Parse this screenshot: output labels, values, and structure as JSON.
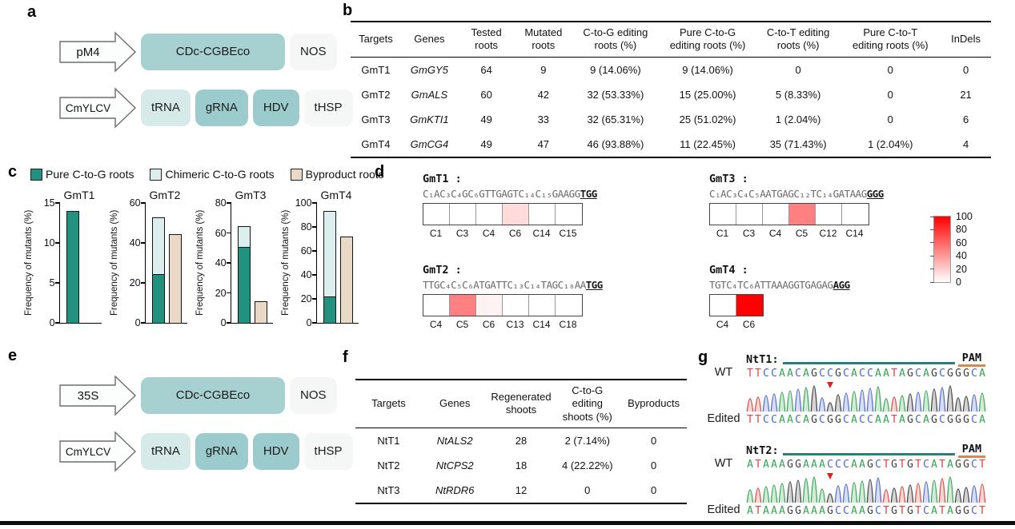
{
  "colors": {
    "box_main": "#a7d0d1",
    "box_teal": "#9ccbcd",
    "box_light": "#d7eaea",
    "box_end": "#f5f7f7",
    "bar_pure": "#23917f",
    "bar_chimeric": "#ddeeee",
    "bar_byproduct": "#ead9c6",
    "heat_red": "#ff0000",
    "base_A": "#2fa54c",
    "base_C": "#4a66cf",
    "base_G": "#3c3c3c",
    "base_T": "#d9453c",
    "target_line": "#2e7d7d",
    "pam_line": "#cd8a52",
    "arrow_red": "#e01f1f"
  },
  "panel_a": {
    "label": "a",
    "rows": [
      {
        "promoter": "pM4",
        "boxes": [
          {
            "text": "CDc-CGBEco",
            "kind": "main"
          },
          {
            "text": "NOS",
            "kind": "end"
          }
        ]
      },
      {
        "promoter": "CmYLCV",
        "boxes": [
          {
            "text": "tRNA",
            "kind": "light"
          },
          {
            "text": "gRNA",
            "kind": "teal"
          },
          {
            "text": "HDV",
            "kind": "teal"
          },
          {
            "text": "tHSP",
            "kind": "end"
          }
        ]
      }
    ]
  },
  "panel_b": {
    "label": "b",
    "headers": [
      "Targets",
      "Genes",
      "Tested\nroots",
      "Mutated\nroots",
      "C-to-G editing\nroots (%)",
      "Pure C-to-G\nediting roots (%)",
      "C-to-T editing\nroots (%)",
      "Pure C-to-T\nediting roots (%)",
      "InDels"
    ],
    "rows": [
      [
        "GmT1",
        "GmGY5",
        "64",
        "9",
        "9 (14.06%)",
        "9 (14.06%)",
        "0",
        "0",
        "0"
      ],
      [
        "GmT2",
        "GmALS",
        "60",
        "42",
        "32 (53.33%)",
        "15 (25.00%)",
        "5 (8.33%)",
        "0",
        "21"
      ],
      [
        "GmT3",
        "GmKTI1",
        "49",
        "33",
        "32 (65.31%)",
        "25 (51.02%)",
        "1 (2.04%)",
        "0",
        "6"
      ],
      [
        "GmT4",
        "GmCG4",
        "49",
        "47",
        "46 (93.88%)",
        "11 (22.45%)",
        "35 (71.43%)",
        "1 (2.04%)",
        "4"
      ]
    ]
  },
  "panel_c": {
    "label": "c",
    "ylabel": "Frequency of mutants (%)",
    "legend": [
      {
        "label": "Pure C-to-G roots",
        "color_key": "bar_pure"
      },
      {
        "label": "Chimeric C-to-G roots",
        "color_key": "bar_chimeric"
      },
      {
        "label": "Byproduct roots",
        "color_key": "bar_byproduct"
      }
    ]
  },
  "panel_d": {
    "label": "d"
  },
  "panel_e": {
    "label": "e",
    "rows": [
      {
        "promoter": "35S",
        "boxes": [
          {
            "text": "CDc-CGBEco",
            "kind": "main"
          },
          {
            "text": "NOS",
            "kind": "end"
          }
        ]
      },
      {
        "promoter": "CmYLCV",
        "boxes": [
          {
            "text": "tRNA",
            "kind": "light"
          },
          {
            "text": "gRNA",
            "kind": "teal"
          },
          {
            "text": "HDV",
            "kind": "teal"
          },
          {
            "text": "tHSP",
            "kind": "end"
          }
        ]
      }
    ]
  },
  "panel_f": {
    "label": "f",
    "headers": [
      "Targets",
      "Genes",
      "Regenerated\nshoots",
      "C-to-G editing\nshoots (%)",
      "Byproducts"
    ],
    "rows": [
      [
        "NtT1",
        "NtALS2",
        "28",
        "2 (7.14%)",
        "0"
      ],
      [
        "NtT2",
        "NtCPS2",
        "18",
        "4 (22.22%)",
        "0"
      ],
      [
        "NtT3",
        "NtRDR6",
        "12",
        "0",
        "0"
      ]
    ]
  },
  "panel_g": {
    "label": "g"
  },
  "chart_data": {
    "bar_charts": [
      {
        "type": "bar",
        "title": "GmT1",
        "ylabel": "Frequency of mutants (%)",
        "ylim": [
          0,
          15
        ],
        "yticks": [
          0,
          5,
          10,
          15
        ],
        "pure_c_to_g": 14.06,
        "c_to_g_total": 14.06,
        "byproduct": 0
      },
      {
        "type": "bar",
        "title": "GmT2",
        "ylabel": "Frequency of mutants (%)",
        "ylim": [
          0,
          60
        ],
        "yticks": [
          0,
          20,
          40,
          60
        ],
        "pure_c_to_g": 25.0,
        "c_to_g_total": 53.33,
        "byproduct": 45
      },
      {
        "type": "bar",
        "title": "GmT3",
        "ylabel": "Frequency of mutants (%)",
        "ylim": [
          0,
          80
        ],
        "yticks": [
          0,
          20,
          40,
          60,
          80
        ],
        "pure_c_to_g": 51.02,
        "c_to_g_total": 65.31,
        "byproduct": 15
      },
      {
        "type": "bar",
        "title": "GmT4",
        "ylabel": "Frequency of mutants (%)",
        "ylim": [
          0,
          100
        ],
        "yticks": [
          0,
          20,
          40,
          60,
          80,
          100
        ],
        "pure_c_to_g": 22.45,
        "c_to_g_total": 93.88,
        "byproduct": 73
      }
    ],
    "heatmaps": [
      {
        "title": "GmT1 :",
        "seq": "C₁AC₃C₄GC₆GTTGAGTC₁₄C₁₅GAAGG",
        "pam": "TGG",
        "cells": [
          {
            "label": "C1",
            "value": 0
          },
          {
            "label": "C3",
            "value": 0
          },
          {
            "label": "C4",
            "value": 0
          },
          {
            "label": "C6",
            "value": 14
          },
          {
            "label": "C14",
            "value": 0
          },
          {
            "label": "C15",
            "value": 0
          }
        ]
      },
      {
        "title": "GmT2 :",
        "seq": "TTGC₄C₅C₆ATGATTC₁₃C₁₄TAGC₁₈AA",
        "pam": "TGG",
        "cells": [
          {
            "label": "C4",
            "value": 0
          },
          {
            "label": "C5",
            "value": 50
          },
          {
            "label": "C6",
            "value": 5
          },
          {
            "label": "C13",
            "value": 0
          },
          {
            "label": "C14",
            "value": 0
          },
          {
            "label": "C18",
            "value": 0
          }
        ]
      },
      {
        "title": "GmT3 :",
        "seq": "C₁AC₃C₄C₅AATGAGC₁₂TC₁₄GATAAG",
        "pam": "GGG",
        "cells": [
          {
            "label": "C1",
            "value": 0
          },
          {
            "label": "C3",
            "value": 0
          },
          {
            "label": "C4",
            "value": 0
          },
          {
            "label": "C5",
            "value": 50
          },
          {
            "label": "C12",
            "value": 0
          },
          {
            "label": "C14",
            "value": 0
          }
        ]
      },
      {
        "title": "GmT4 :",
        "seq": "TGTC₄TC₆ATTAAAGGTGAGAG",
        "pam": "AGG",
        "cells": [
          {
            "label": "C4",
            "value": 0
          },
          {
            "label": "C6",
            "value": 100
          }
        ]
      }
    ],
    "colorbar": {
      "max": 100,
      "ticks": [
        100,
        80,
        60,
        40,
        20,
        0
      ]
    },
    "chromatograms": [
      {
        "title": "NtT1:",
        "pam_label": "PAM",
        "wt_label": "WT",
        "edited_label": "Edited",
        "wt_seq": "TTCCAACAGCCGCACCAATAGCAGCGGGCA",
        "edited_seq": "TTCCAACAGCGGCACCAATAGCAGCGGGCA",
        "edit_index": 10
      },
      {
        "title": "NtT2:",
        "pam_label": "PAM",
        "wt_label": "WT",
        "edited_label": "Edited",
        "wt_seq": "ATAAAGGAAACCCAAGCTGTGTCATAGGCT",
        "edited_seq": "ATAAAGGAAAGCCAAGCTGTGTCATAGGCT",
        "edit_index": 10
      }
    ]
  }
}
